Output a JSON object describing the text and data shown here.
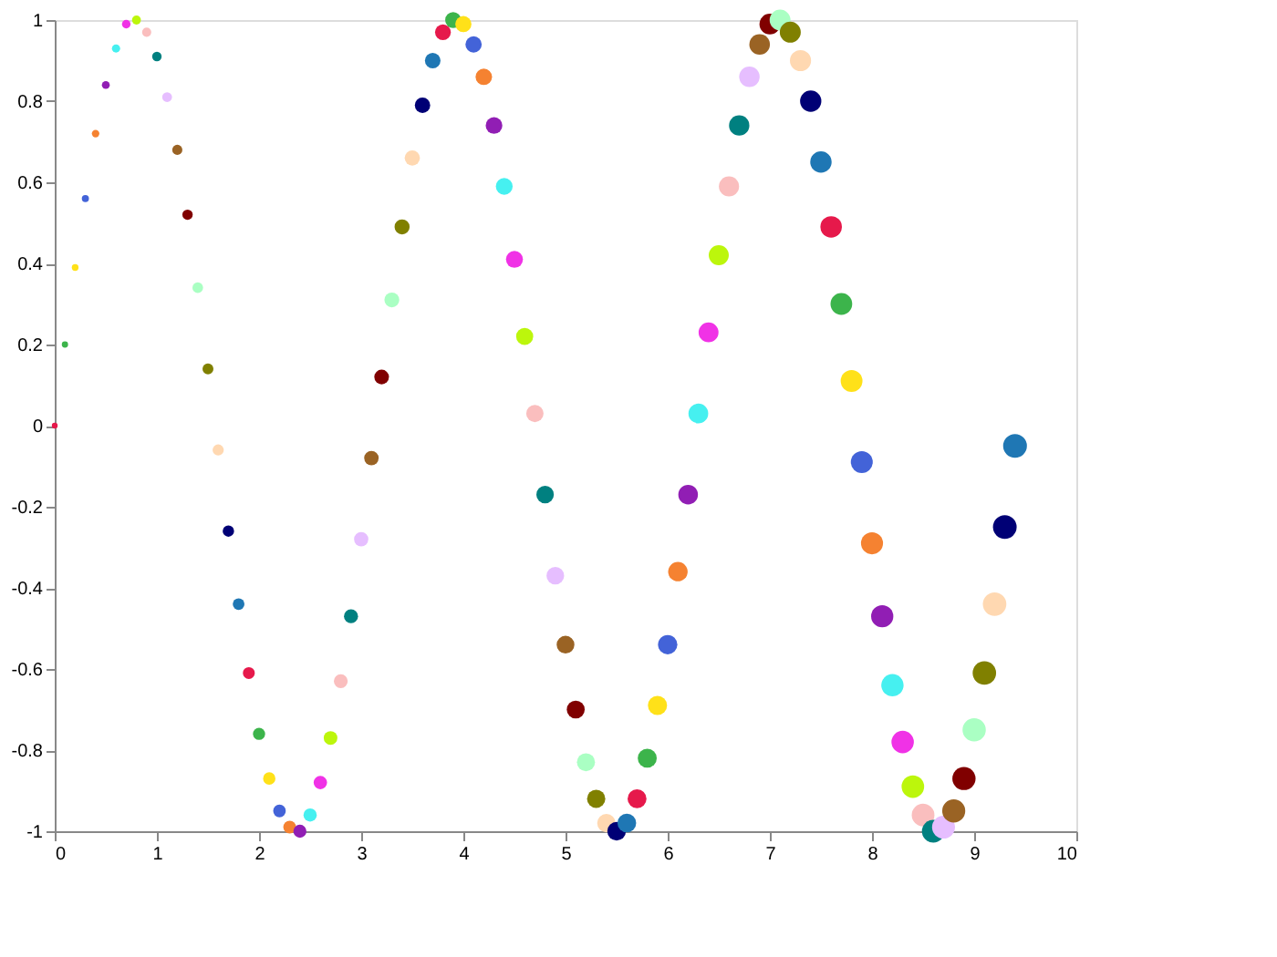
{
  "chart_data": {
    "type": "bubble",
    "x": [
      0,
      0.1,
      0.2,
      0.3,
      0.4,
      0.5,
      0.6,
      0.7,
      0.8,
      0.9,
      1,
      1.1,
      1.2,
      1.3,
      1.4,
      1.5,
      1.6,
      1.7,
      1.8,
      1.9,
      2,
      2.1,
      2.2,
      2.3,
      2.4,
      2.5,
      2.6,
      2.7,
      2.8,
      2.9,
      3,
      3.1,
      3.2,
      3.3,
      3.4,
      3.5,
      3.6,
      3.7,
      3.8,
      3.9,
      4,
      4.1,
      4.2,
      4.3,
      4.4,
      4.5,
      4.6,
      4.7,
      4.8,
      4.9,
      5,
      5.1,
      5.2,
      5.3,
      5.4,
      5.5,
      5.6,
      5.7,
      5.8,
      5.9,
      6,
      6.1,
      6.2,
      6.3,
      6.4,
      6.5,
      6.6,
      6.7,
      6.8,
      6.9,
      7,
      7.1,
      7.2,
      7.3,
      7.4,
      7.5,
      7.6,
      7.7,
      7.8,
      7.9,
      8,
      8.1,
      8.2,
      8.3,
      8.4,
      8.5,
      8.6,
      8.7,
      8.8,
      8.9,
      9,
      9.1,
      9.2,
      9.3,
      9.4
    ],
    "values": [
      0,
      0.2,
      0.39,
      0.56,
      0.72,
      0.84,
      0.93,
      0.99,
      1,
      0.97,
      0.91,
      0.81,
      0.68,
      0.52,
      0.34,
      0.14,
      -0.06,
      -0.26,
      -0.44,
      -0.61,
      -0.76,
      -0.87,
      -0.95,
      -0.99,
      -1,
      -0.96,
      -0.88,
      -0.77,
      -0.63,
      -0.47,
      -0.28,
      -0.08,
      0.12,
      0.31,
      0.49,
      0.66,
      0.79,
      0.9,
      0.97,
      1,
      0.99,
      0.94,
      0.86,
      0.74,
      0.59,
      0.41,
      0.22,
      0.03,
      -0.17,
      -0.37,
      -0.54,
      -0.7,
      -0.83,
      -0.92,
      -0.98,
      -1,
      -0.98,
      -0.92,
      -0.82,
      -0.69,
      -0.54,
      -0.36,
      -0.17,
      0.03,
      0.23,
      0.42,
      0.59,
      0.74,
      0.86,
      0.94,
      0.99,
      1,
      0.97,
      0.9,
      0.8,
      0.65,
      0.49,
      0.3,
      0.11,
      -0.09,
      -0.29,
      -0.47,
      -0.64,
      -0.78,
      -0.89,
      -0.96,
      -1,
      -0.99,
      -0.95,
      -0.87,
      -0.75,
      -0.61,
      -0.44,
      -0.25,
      -0.05
    ],
    "sizes": [
      0.06,
      0.07,
      0.08,
      0.09,
      0.1,
      0.11,
      0.12,
      0.13,
      0.14,
      0.15,
      0.16,
      0.17,
      0.18,
      0.19,
      0.2,
      0.21,
      0.22,
      0.23,
      0.24,
      0.25,
      0.26,
      0.27,
      0.28,
      0.29,
      0.3,
      0.31,
      0.32,
      0.33,
      0.34,
      0.35,
      0.36,
      0.37,
      0.38,
      0.39,
      0.4,
      0.41,
      0.42,
      0.43,
      0.44,
      0.45,
      0.46,
      0.47,
      0.48,
      0.49,
      0.5,
      0.51,
      0.52,
      0.53,
      0.54,
      0.55,
      0.56,
      0.57,
      0.58,
      0.59,
      0.6,
      0.61,
      0.62,
      0.63,
      0.64,
      0.65,
      0.66,
      0.67,
      0.68,
      0.69,
      0.7,
      0.71,
      0.72,
      0.73,
      0.74,
      0.75,
      0.76,
      0.77,
      0.78,
      0.79,
      0.8,
      0.81,
      0.82,
      0.83,
      0.84,
      0.85,
      0.86,
      0.87,
      0.88,
      0.89,
      0.9,
      0.91,
      0.92,
      0.93,
      0.94,
      0.95,
      0.96,
      0.97,
      0.98,
      0.99,
      1
    ],
    "colors": [
      "#e6194b",
      "#3cb44b",
      "#ffe119",
      "#4363d8",
      "#f58231",
      "#911eb4",
      "#46f0f0",
      "#f032e6",
      "#bcf60c",
      "#fabebe",
      "#008080",
      "#e6beff",
      "#9a6324",
      "#800000",
      "#aaffc3",
      "#808000",
      "#ffd8b1",
      "#000075",
      "#1f77b4",
      "#e6194b",
      "#3cb44b",
      "#ffe119",
      "#4363d8",
      "#f58231",
      "#911eb4",
      "#46f0f0",
      "#f032e6",
      "#bcf60c",
      "#fabebe",
      "#008080",
      "#e6beff",
      "#9a6324",
      "#800000",
      "#aaffc3",
      "#808000",
      "#ffd8b1",
      "#000075",
      "#1f77b4",
      "#e6194b",
      "#3cb44b",
      "#ffe119",
      "#4363d8",
      "#f58231",
      "#911eb4",
      "#46f0f0",
      "#f032e6",
      "#bcf60c",
      "#fabebe",
      "#008080",
      "#e6beff",
      "#9a6324",
      "#800000",
      "#aaffc3",
      "#808000",
      "#ffd8b1",
      "#000075",
      "#1f77b4",
      "#e6194b",
      "#3cb44b",
      "#ffe119",
      "#4363d8",
      "#f58231",
      "#911eb4",
      "#46f0f0",
      "#f032e6",
      "#bcf60c",
      "#fabebe",
      "#008080",
      "#e6beff",
      "#9a6324",
      "#800000",
      "#aaffc3",
      "#808000",
      "#ffd8b1",
      "#000075",
      "#1f77b4",
      "#e6194b",
      "#3cb44b",
      "#ffe119",
      "#4363d8",
      "#f58231",
      "#911eb4",
      "#46f0f0",
      "#f032e6",
      "#bcf60c",
      "#fabebe",
      "#008080",
      "#e6beff",
      "#9a6324",
      "#800000",
      "#aaffc3",
      "#808000",
      "#ffd8b1",
      "#000075",
      "#1f77b4"
    ],
    "xlim": [
      0,
      10
    ],
    "xticks": [
      0,
      1,
      2,
      3,
      4,
      5,
      6,
      7,
      8,
      9,
      10
    ],
    "ylim": [
      -1,
      1
    ],
    "yticks": [
      -1,
      -0.8,
      -0.6,
      -0.4,
      -0.2,
      0,
      0.2,
      0.4,
      0.6,
      0.8,
      1
    ],
    "grid": false,
    "marker": "circle"
  }
}
